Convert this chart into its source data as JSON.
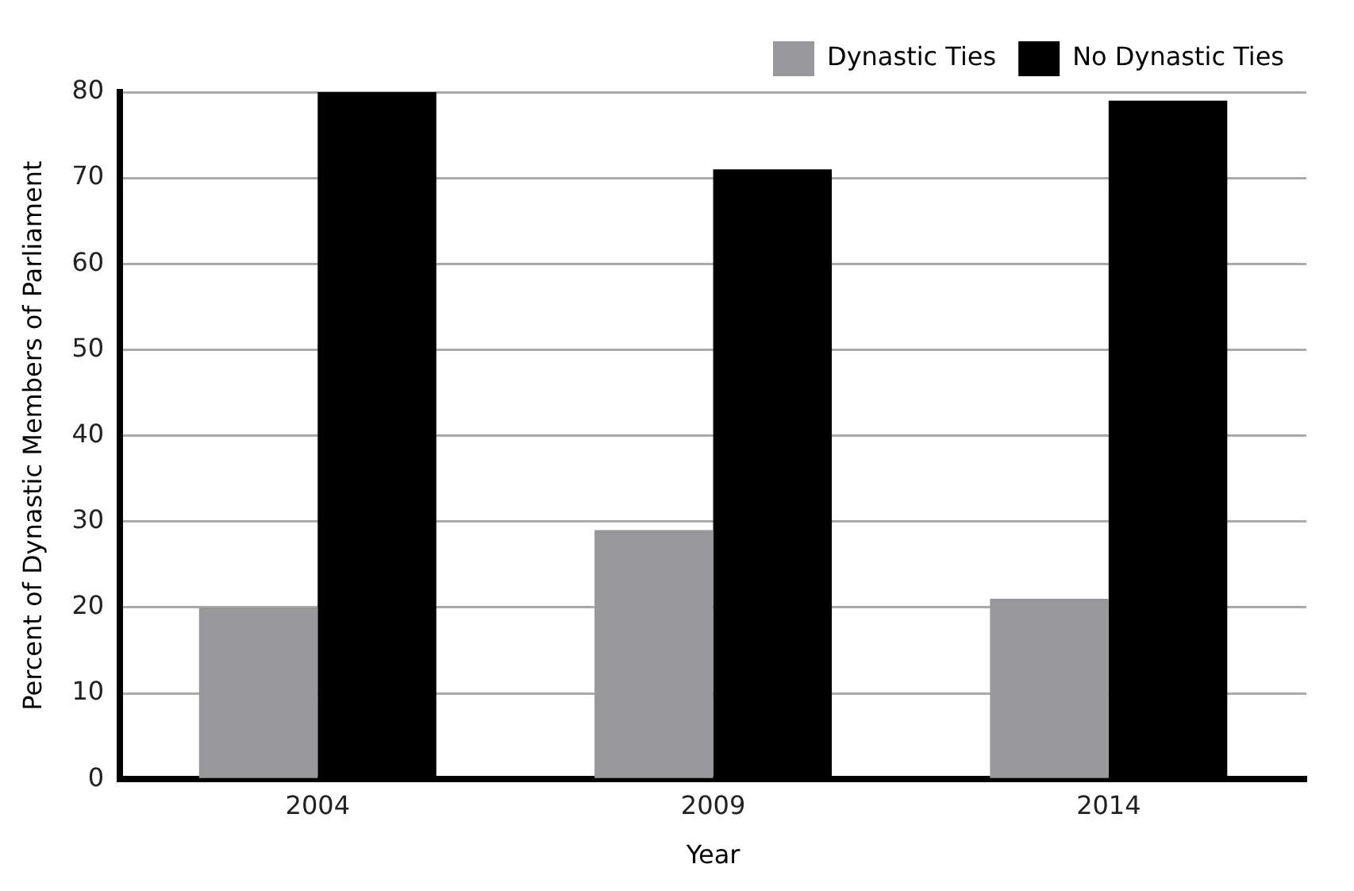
{
  "chart_data": {
    "type": "bar",
    "xlabel": "Year",
    "ylabel": "Percent of Dynastic Members of Parliament",
    "categories": [
      "2004",
      "2009",
      "2014"
    ],
    "series": [
      {
        "name": "Dynastic Ties",
        "color": "#98989c",
        "values": [
          20,
          29,
          21
        ]
      },
      {
        "name": "No Dynastic Ties",
        "color": "#000000",
        "values": [
          80,
          71,
          79
        ]
      }
    ],
    "ylim": [
      0,
      80
    ],
    "yticks": [
      0,
      10,
      20,
      30,
      40,
      50,
      60,
      70,
      80
    ],
    "grid": "y",
    "legend": "top right"
  }
}
